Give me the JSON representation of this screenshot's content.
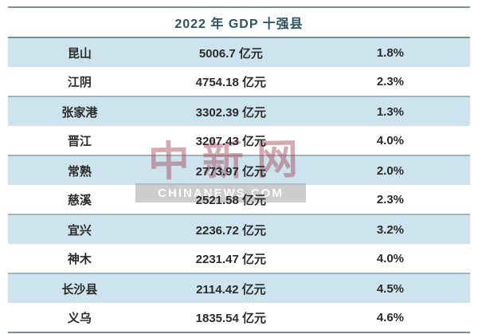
{
  "title": "2022 年 GDP 十强县",
  "table": {
    "rows": [
      {
        "name": "昆山",
        "gdp": "5006.7 亿元",
        "growth": "1.8%"
      },
      {
        "name": "江阴",
        "gdp": "4754.18 亿元",
        "growth": "2.3%"
      },
      {
        "name": "张家港",
        "gdp": "3302.39 亿元",
        "growth": "1.3%"
      },
      {
        "name": "晋江",
        "gdp": "3207.43 亿元",
        "growth": "4.0%"
      },
      {
        "name": "常熟",
        "gdp": "2773.97 亿元",
        "growth": "2.0%"
      },
      {
        "name": "慈溪",
        "gdp": "2521.58 亿元",
        "growth": "2.3%"
      },
      {
        "name": "宜兴",
        "gdp": "2236.72 亿元",
        "growth": "3.2%"
      },
      {
        "name": "神木",
        "gdp": "2231.47 亿元",
        "growth": "4.0%"
      },
      {
        "name": "长沙县",
        "gdp": "2114.42 亿元",
        "growth": "4.5%"
      },
      {
        "name": "义乌",
        "gdp": "1835.54 亿元",
        "growth": "4.6%"
      }
    ]
  },
  "watermark": {
    "cn": "中新网",
    "en": "CHINANEWS.COM"
  },
  "colors": {
    "row_alt": "#cde4ee",
    "line_strong": "#7d8d94",
    "line_light": "#a5b3b9",
    "title_text": "#2d5362",
    "watermark_red": "#a43e52"
  },
  "chart_data": {
    "type": "table",
    "title": "2022 年 GDP 十强县",
    "unit": "亿元",
    "rows": [
      {
        "county": "昆山",
        "gdp": 5006.7,
        "growth_pct": 1.8
      },
      {
        "county": "江阴",
        "gdp": 4754.18,
        "growth_pct": 2.3
      },
      {
        "county": "张家港",
        "gdp": 3302.39,
        "growth_pct": 1.3
      },
      {
        "county": "晋江",
        "gdp": 3207.43,
        "growth_pct": 4.0
      },
      {
        "county": "常熟",
        "gdp": 2773.97,
        "growth_pct": 2.0
      },
      {
        "county": "慈溪",
        "gdp": 2521.58,
        "growth_pct": 2.3
      },
      {
        "county": "宜兴",
        "gdp": 2236.72,
        "growth_pct": 3.2
      },
      {
        "county": "神木",
        "gdp": 2231.47,
        "growth_pct": 4.0
      },
      {
        "county": "长沙县",
        "gdp": 2114.42,
        "growth_pct": 4.5
      },
      {
        "county": "义乌",
        "gdp": 1835.54,
        "growth_pct": 4.6
      }
    ]
  }
}
